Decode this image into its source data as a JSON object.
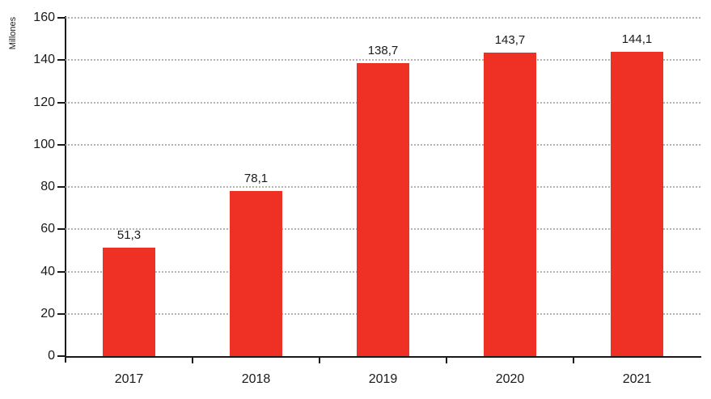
{
  "chart_data": {
    "type": "bar",
    "title": "",
    "xlabel": "",
    "ylabel": "Millones",
    "categories": [
      "2017",
      "2018",
      "2019",
      "2020",
      "2021"
    ],
    "values": [
      51.3,
      78.1,
      138.7,
      143.7,
      144.1
    ],
    "value_labels": [
      "51,3",
      "78,1",
      "138,7",
      "143,7",
      "144,1"
    ],
    "ylim": [
      0,
      160
    ],
    "yticks": [
      0,
      20,
      40,
      60,
      80,
      100,
      120,
      140,
      160
    ],
    "grid": "horizontal-dotted",
    "legend": "none",
    "bar_color": "#ee3124",
    "axis_color": "#1a1a1a",
    "grid_color": "#b3b3b3",
    "text_color": "#1a1a1a"
  }
}
